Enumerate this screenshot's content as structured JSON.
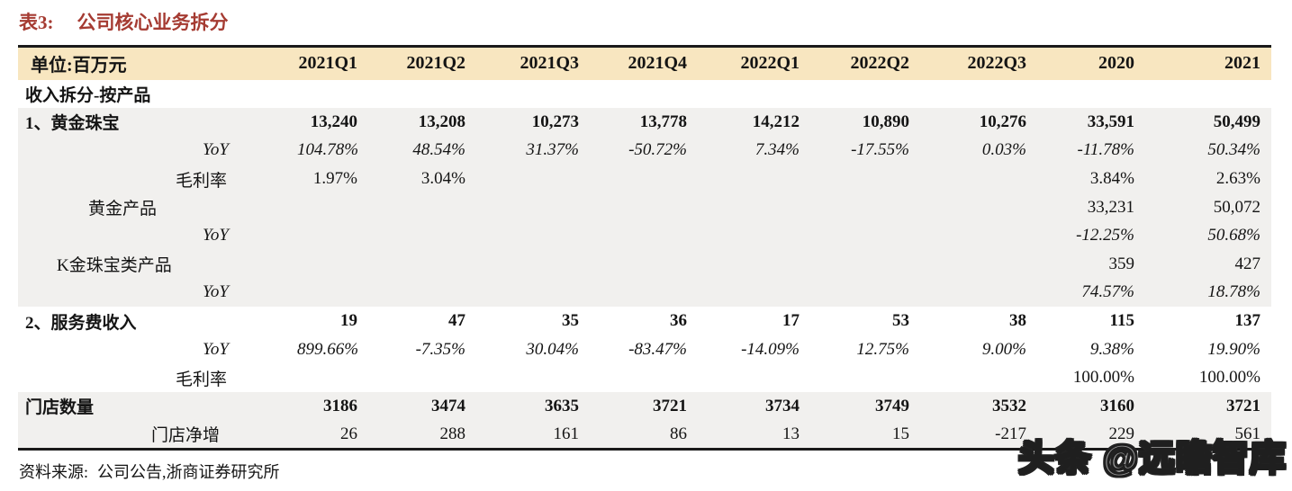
{
  "title": {
    "label": "表3:",
    "text": "公司核心业务拆分"
  },
  "table": {
    "unit_header": "单位:百万元",
    "columns": [
      "2021Q1",
      "2021Q2",
      "2021Q3",
      "2021Q4",
      "2022Q1",
      "2022Q2",
      "2022Q3",
      "2020",
      "2021"
    ],
    "rows": [
      {
        "label": "收入拆分-按产品",
        "style": "bold",
        "indent": 0,
        "shaded": false,
        "values": [
          "",
          "",
          "",
          "",
          "",
          "",
          "",
          "",
          ""
        ]
      },
      {
        "label": "1、黄金珠宝",
        "style": "bold",
        "indent": 0,
        "shaded": true,
        "values": [
          "13,240",
          "13,208",
          "10,273",
          "13,778",
          "14,212",
          "10,890",
          "10,276",
          "33,591",
          "50,499"
        ]
      },
      {
        "label": "YoY",
        "style": "italic",
        "indent": 5,
        "shaded": true,
        "values": [
          "104.78%",
          "48.54%",
          "31.37%",
          "-50.72%",
          "7.34%",
          "-17.55%",
          "0.03%",
          "-11.78%",
          "50.34%"
        ]
      },
      {
        "label": "毛利率",
        "style": "normal",
        "indent": 4,
        "shaded": true,
        "values": [
          "1.97%",
          "3.04%",
          "",
          "",
          "",
          "",
          "",
          "3.84%",
          "2.63%"
        ]
      },
      {
        "label": "黄金产品",
        "style": "normal",
        "indent": 2,
        "shaded": true,
        "values": [
          "",
          "",
          "",
          "",
          "",
          "",
          "",
          "33,231",
          "50,072"
        ]
      },
      {
        "label": "YoY",
        "style": "italic",
        "indent": 5,
        "shaded": true,
        "values": [
          "",
          "",
          "",
          "",
          "",
          "",
          "",
          "-12.25%",
          "50.68%"
        ]
      },
      {
        "label": "K金珠宝类产品",
        "style": "normal",
        "indent": 1,
        "shaded": true,
        "values": [
          "",
          "",
          "",
          "",
          "",
          "",
          "",
          "359",
          "427"
        ]
      },
      {
        "label": "YoY",
        "style": "italic",
        "indent": 5,
        "shaded": true,
        "values": [
          "",
          "",
          "",
          "",
          "",
          "",
          "",
          "74.57%",
          "18.78%"
        ]
      },
      {
        "label": "2、服务费收入",
        "style": "bold",
        "indent": 0,
        "shaded": false,
        "values": [
          "19",
          "47",
          "35",
          "36",
          "17",
          "53",
          "38",
          "115",
          "137"
        ]
      },
      {
        "label": "YoY",
        "style": "italic",
        "indent": 5,
        "shaded": false,
        "values": [
          "899.66%",
          "-7.35%",
          "30.04%",
          "-83.47%",
          "-14.09%",
          "12.75%",
          "9.00%",
          "9.38%",
          "19.90%"
        ]
      },
      {
        "label": "毛利率",
        "style": "normal",
        "indent": 4,
        "shaded": false,
        "values": [
          "",
          "",
          "",
          "",
          "",
          "",
          "",
          "100.00%",
          "100.00%"
        ]
      },
      {
        "label": "门店数量",
        "style": "bold",
        "indent": 0,
        "shaded": true,
        "values": [
          "3186",
          "3474",
          "3635",
          "3721",
          "3734",
          "3749",
          "3532",
          "3160",
          "3721"
        ]
      },
      {
        "label": "门店净增",
        "style": "normal",
        "indent": 3,
        "shaded": true,
        "values": [
          "26",
          "288",
          "161",
          "86",
          "13",
          "15",
          "-217",
          "229",
          "561"
        ]
      }
    ]
  },
  "footer": {
    "source_label": "资料来源:",
    "source_text": "公司公告,浙商证券研究所"
  },
  "watermark": {
    "text": "头条 @远瞻智库"
  },
  "colors": {
    "title_red": "#A53B32",
    "header_bg": "#F8E6C0",
    "shaded_row_bg": "#F1F0EE",
    "border_dark": "#1A1A1A"
  }
}
